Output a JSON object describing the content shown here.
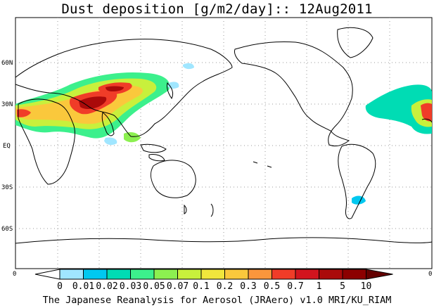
{
  "title": "Dust deposition [g/m2/day]:: 12Aug2011",
  "credit": "The Japanese Reanalysis for Aerosol (JRAero) v1.0 MRI/KU_RIAM",
  "latitude_labels": [
    "60N",
    "30N",
    "EQ",
    "30S",
    "60S"
  ],
  "frame_corner_labels": [
    "0",
    "0"
  ],
  "colorbar": {
    "labels": [
      "0",
      "0.01",
      "0.02",
      "0.03",
      "0.05",
      "0.07",
      "0.1",
      "0.2",
      "0.3",
      "0.5",
      "0.7",
      "1",
      "5",
      "10"
    ],
    "colors": [
      "#ffffff",
      "#a0e6ff",
      "#00c8f0",
      "#00dcb4",
      "#3cf08c",
      "#8cf050",
      "#c8f03c",
      "#f0e63c",
      "#fac83c",
      "#fa963c",
      "#f03c28",
      "#d2141e",
      "#aa0a0a",
      "#8c0000",
      "#640000"
    ]
  },
  "colors": {
    "coastline": "#000000",
    "grid": "#999999",
    "low": "#3cf08c",
    "mid": "#f0e63c",
    "high": "#f03c28",
    "extreme": "#aa0a0a"
  }
}
